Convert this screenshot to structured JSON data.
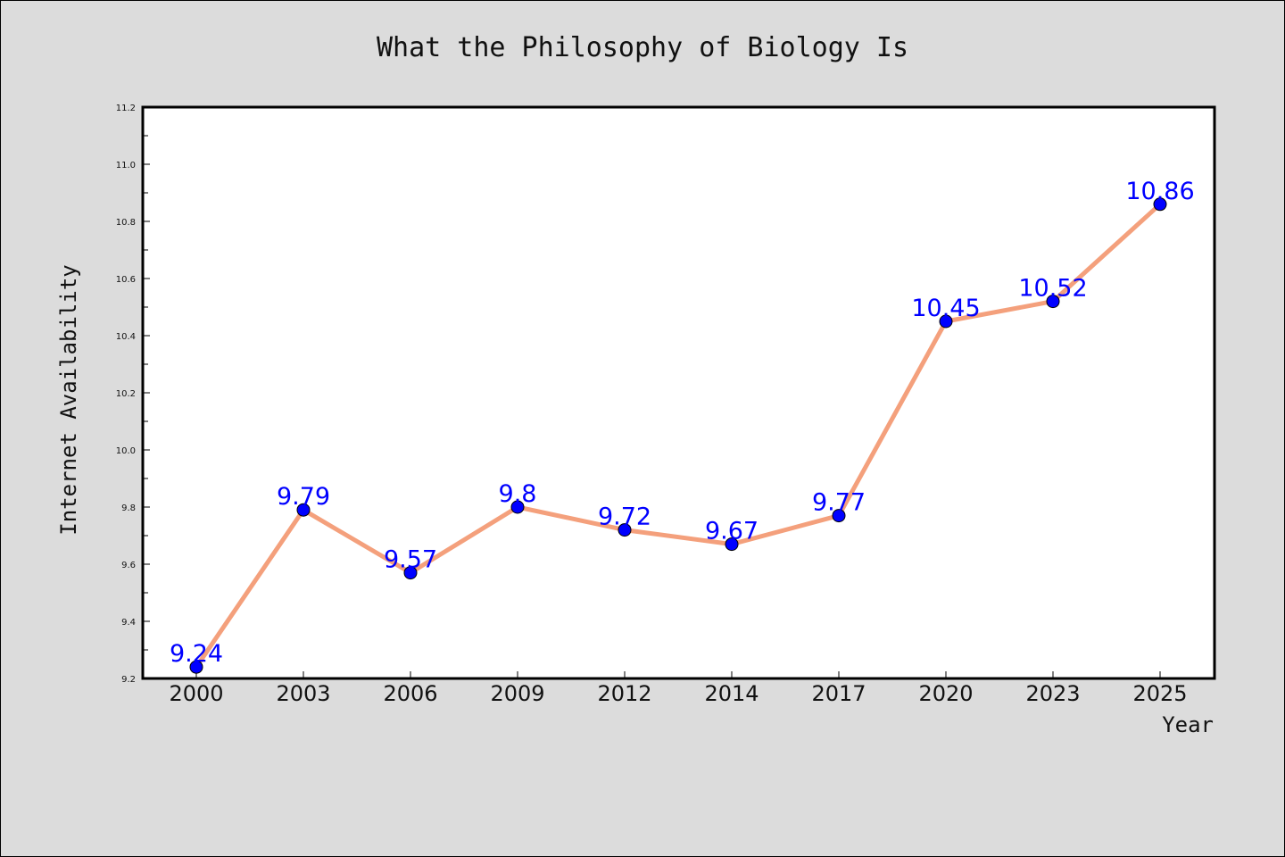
{
  "chart_data": {
    "type": "line",
    "title": "What the Philosophy of Biology Is",
    "xlabel": "Year",
    "ylabel": "Internet Availability",
    "categories": [
      "2000",
      "2003",
      "2006",
      "2009",
      "2012",
      "2014",
      "2017",
      "2020",
      "2023",
      "2025"
    ],
    "series": [
      {
        "values": [
          9.24,
          9.79,
          9.57,
          9.8,
          9.72,
          9.67,
          9.77,
          10.45,
          10.52,
          10.86
        ],
        "data_labels": [
          "9.24",
          "9.79",
          "9.57",
          "9.8",
          "9.72",
          "9.67",
          "9.77",
          "10.45",
          "10.52",
          "10.86"
        ],
        "line_color": "#f4a07c",
        "marker_color": "#0000ff"
      }
    ],
    "yticks": [
      "9.2",
      "9.4",
      "9.6",
      "9.8",
      "10.0",
      "10.2",
      "10.4",
      "10.6",
      "10.8",
      "11.0",
      "11.2"
    ],
    "ylim": [
      9.2,
      11.2
    ],
    "grid": false,
    "colors": {
      "background": "#dcdcdc",
      "plot_background": "#ffffff",
      "label_color": "#0000ff"
    }
  }
}
